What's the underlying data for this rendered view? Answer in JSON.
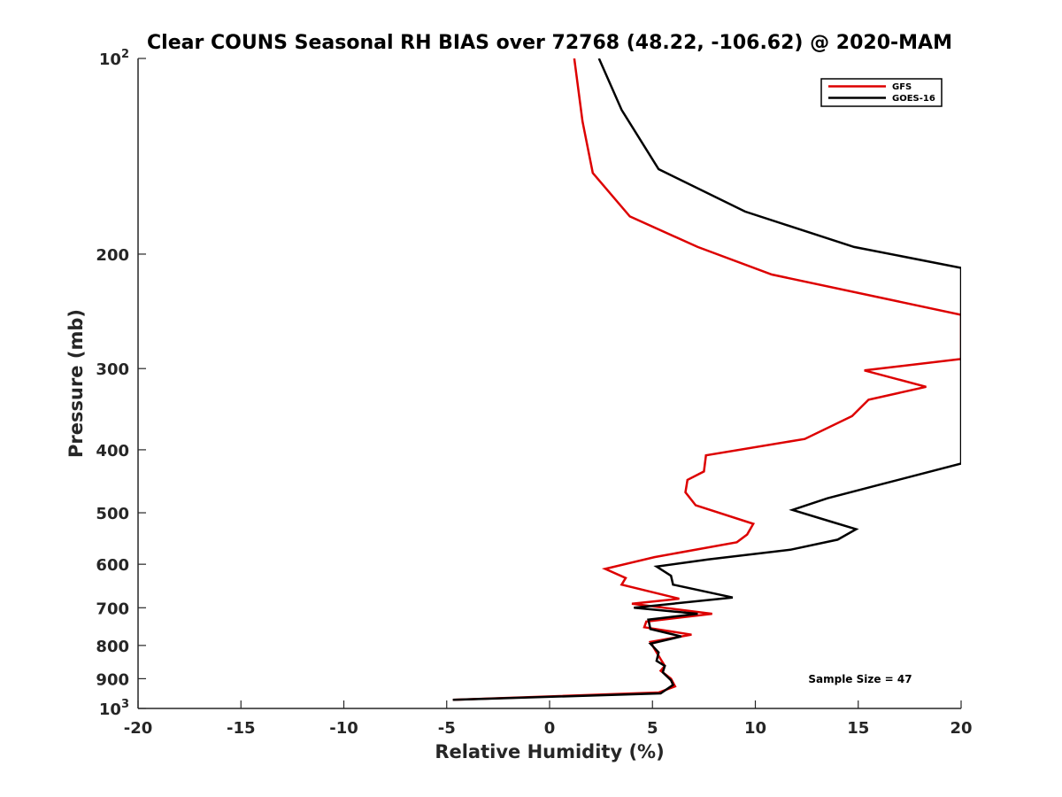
{
  "chart_data": {
    "type": "line",
    "title": "Clear COUNS Seasonal RH BIAS over 72768 (48.22, -106.62) @ 2020-MAM",
    "xlabel": "Relative Humidity (%)",
    "ylabel": "Pressure (mb)",
    "xlim": [
      -20,
      20
    ],
    "ylim": [
      100,
      1000
    ],
    "y_scale": "log",
    "y_reversed": true,
    "x_ticks": [
      {
        "value": -20,
        "label": "-20"
      },
      {
        "value": -15,
        "label": "-15"
      },
      {
        "value": -10,
        "label": "-10"
      },
      {
        "value": -5,
        "label": "-5"
      },
      {
        "value": 0,
        "label": "0"
      },
      {
        "value": 5,
        "label": "5"
      },
      {
        "value": 10,
        "label": "10"
      },
      {
        "value": 15,
        "label": "15"
      },
      {
        "value": 20,
        "label": "20"
      }
    ],
    "y_ticks": [
      {
        "value": 100,
        "base": "10",
        "exp": "2"
      },
      {
        "value": 200,
        "base": "200",
        "exp": ""
      },
      {
        "value": 300,
        "base": "300",
        "exp": ""
      },
      {
        "value": 400,
        "base": "400",
        "exp": ""
      },
      {
        "value": 500,
        "base": "500",
        "exp": ""
      },
      {
        "value": 600,
        "base": "600",
        "exp": ""
      },
      {
        "value": 700,
        "base": "700",
        "exp": ""
      },
      {
        "value": 800,
        "base": "800",
        "exp": ""
      },
      {
        "value": 900,
        "base": "900",
        "exp": ""
      },
      {
        "value": 1000,
        "base": "10",
        "exp": "3"
      }
    ],
    "legend_position": "top-right",
    "annotation": "Sample Size = 47",
    "series": [
      {
        "name": "GFS",
        "color": "#dd0000",
        "points": [
          [
            1.2,
            100
          ],
          [
            1.6,
            125
          ],
          [
            2.1,
            150
          ],
          [
            3.9,
            175
          ],
          [
            7.2,
            195
          ],
          [
            10.8,
            215
          ],
          [
            20.0,
            248
          ],
          [
            20.0,
            290
          ],
          [
            15.3,
            302
          ],
          [
            18.3,
            320
          ],
          [
            15.5,
            335
          ],
          [
            14.7,
            355
          ],
          [
            12.4,
            385
          ],
          [
            7.6,
            408
          ],
          [
            7.5,
            432
          ],
          [
            6.7,
            445
          ],
          [
            6.6,
            465
          ],
          [
            7.1,
            487
          ],
          [
            9.9,
            520
          ],
          [
            9.6,
            540
          ],
          [
            9.1,
            555
          ],
          [
            5.1,
            585
          ],
          [
            2.7,
            610
          ],
          [
            3.7,
            630
          ],
          [
            3.5,
            645
          ],
          [
            6.3,
            678
          ],
          [
            4.0,
            690
          ],
          [
            7.9,
            715
          ],
          [
            4.7,
            735
          ],
          [
            4.6,
            750
          ],
          [
            6.9,
            770
          ],
          [
            4.9,
            790
          ],
          [
            5.2,
            820
          ],
          [
            5.4,
            840
          ],
          [
            5.6,
            860
          ],
          [
            5.4,
            875
          ],
          [
            5.9,
            900
          ],
          [
            6.1,
            925
          ],
          [
            5.3,
            945
          ],
          [
            -4.7,
            970
          ]
        ]
      },
      {
        "name": "GOES-16",
        "color": "#000000",
        "points": [
          [
            2.4,
            100
          ],
          [
            3.5,
            120
          ],
          [
            5.3,
            148
          ],
          [
            9.5,
            172
          ],
          [
            14.8,
            195
          ],
          [
            20.0,
            210
          ],
          [
            20.0,
            420
          ],
          [
            16.0,
            453
          ],
          [
            13.5,
            475
          ],
          [
            11.8,
            495
          ],
          [
            13.6,
            515
          ],
          [
            14.9,
            530
          ],
          [
            14.0,
            550
          ],
          [
            11.7,
            570
          ],
          [
            7.7,
            590
          ],
          [
            5.2,
            605
          ],
          [
            5.9,
            625
          ],
          [
            6.0,
            645
          ],
          [
            8.9,
            675
          ],
          [
            4.1,
            700
          ],
          [
            7.2,
            715
          ],
          [
            4.8,
            730
          ],
          [
            4.9,
            755
          ],
          [
            6.4,
            775
          ],
          [
            4.9,
            795
          ],
          [
            5.3,
            820
          ],
          [
            5.2,
            845
          ],
          [
            5.6,
            860
          ],
          [
            5.5,
            880
          ],
          [
            5.9,
            905
          ],
          [
            6.0,
            920
          ],
          [
            5.4,
            948
          ],
          [
            -4.7,
            970
          ]
        ]
      }
    ]
  }
}
